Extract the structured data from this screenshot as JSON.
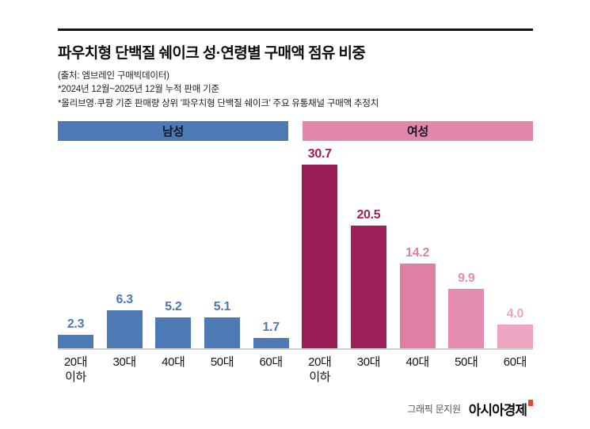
{
  "header": {
    "title": "파우치형 단백질 쉐이크 성·연령별 구매액 점유 비중",
    "source": "(출처: 엠브레인 구매빅데이터)",
    "note1": "*2024년 12월~2025년 12월 누적 판매 기준",
    "note2": "*올리브영·쿠팡 기준 판매량 상위 '파우치형 단백질 쉐이크' 주요 유통채널 구매액 추정치"
  },
  "chart_data": {
    "type": "bar",
    "title": "파우치형 단백질 쉐이크 성·연령별 구매액 점유 비중",
    "categories": [
      "20대\n이하",
      "30대",
      "40대",
      "50대",
      "60대"
    ],
    "series": [
      {
        "name": "남성",
        "header_color": "#4d79b5",
        "values": [
          2.3,
          6.3,
          5.2,
          5.1,
          1.7
        ],
        "bar_colors": [
          "#4d79b5",
          "#4d79b5",
          "#4d79b5",
          "#4d79b5",
          "#4d79b5"
        ]
      },
      {
        "name": "여성",
        "header_color": "#e287ab",
        "values": [
          30.7,
          20.5,
          14.2,
          9.9,
          4.0
        ],
        "bar_colors": [
          "#9b1d55",
          "#9d2058",
          "#e07ea6",
          "#e48cb0",
          "#eda6c1"
        ]
      }
    ],
    "ylim": [
      0,
      31
    ],
    "xlabel": "",
    "ylabel": "",
    "grid": false,
    "legend_position": "top",
    "value_labels": true
  },
  "footer": {
    "credit": "그래픽 문지원",
    "logo": "아시아경제"
  }
}
